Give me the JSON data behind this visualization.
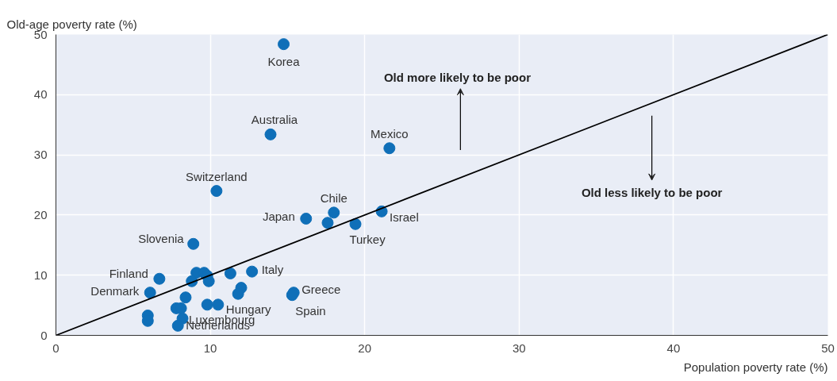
{
  "chart_data": {
    "type": "scatter",
    "xlabel": "Population poverty rate (%)",
    "ylabel": "Old-age poverty rate (%)",
    "xlim": [
      0,
      50
    ],
    "ylim": [
      0,
      50
    ],
    "xticks": [
      0,
      10,
      20,
      30,
      40,
      50
    ],
    "yticks": [
      0,
      10,
      20,
      30,
      40,
      50
    ],
    "grid": true,
    "marker": "circle",
    "series": [
      {
        "color": "#0f6fb8",
        "x": [
          14.75,
          13.9,
          21.6,
          10.4,
          18.0,
          16.2,
          17.6,
          19.4,
          21.1,
          8.9,
          12.7,
          11.3,
          6.7,
          6.1,
          9.1,
          9.6,
          9.8,
          9.9,
          8.8,
          15.4,
          15.3,
          12.0,
          11.8,
          8.4,
          9.8,
          10.5,
          7.8,
          8.1,
          5.95,
          5.95,
          8.2,
          7.9
        ],
        "values": [
          48.4,
          33.4,
          31.1,
          24.0,
          20.4,
          19.4,
          18.7,
          18.5,
          20.6,
          15.2,
          10.6,
          10.3,
          9.4,
          7.1,
          10.4,
          10.4,
          9.9,
          9.0,
          9.0,
          7.1,
          6.7,
          7.9,
          6.9,
          6.3,
          5.1,
          5.1,
          4.5,
          4.5,
          3.3,
          2.4,
          2.8,
          1.6
        ]
      },
      {
        "type": "line",
        "marker": "none",
        "color": "#000000",
        "x": [
          0,
          50
        ],
        "values": [
          0,
          50
        ]
      }
    ],
    "annotations": [
      {
        "text": "Korea",
        "x": 14.75,
        "y": 48.4
      },
      {
        "text": "Australia",
        "x": 13.9,
        "y": 33.4
      },
      {
        "text": "Mexico",
        "x": 21.6,
        "y": 31.1
      },
      {
        "text": "Switzerland",
        "x": 10.4,
        "y": 24.0
      },
      {
        "text": "Chile",
        "x": 18.0,
        "y": 20.4
      },
      {
        "text": "Japan",
        "x": 16.2,
        "y": 19.4
      },
      {
        "text": "Turkey",
        "x": 19.4,
        "y": 18.5
      },
      {
        "text": "Israel",
        "x": 21.1,
        "y": 20.6
      },
      {
        "text": "Slovenia",
        "x": 8.9,
        "y": 15.2
      },
      {
        "text": "Italy",
        "x": 12.7,
        "y": 10.6
      },
      {
        "text": "Finland",
        "x": 6.7,
        "y": 9.4
      },
      {
        "text": "Denmark",
        "x": 6.1,
        "y": 7.1
      },
      {
        "text": "Greece",
        "x": 15.4,
        "y": 7.1
      },
      {
        "text": "Spain",
        "x": 15.3,
        "y": 6.7
      },
      {
        "text": "Hungary",
        "x": 10.5,
        "y": 5.1
      },
      {
        "text": "Luxembourg",
        "x": 8.2,
        "y": 2.8
      },
      {
        "text": "Netherlands",
        "x": 7.9,
        "y": 1.6
      },
      "Old more likely to be poor",
      "Old less likely to be poor"
    ]
  }
}
